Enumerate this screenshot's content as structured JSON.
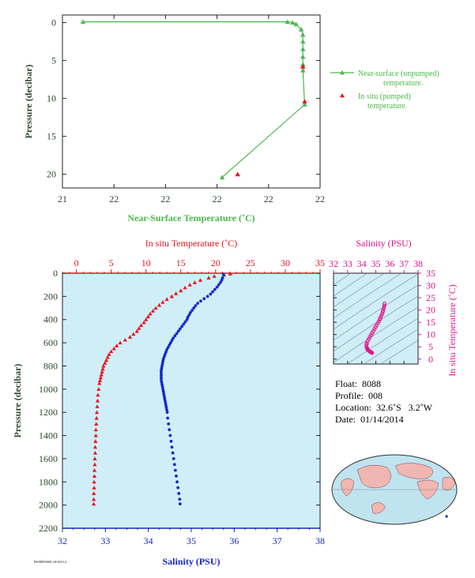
{
  "chart_data": [
    {
      "type": "line",
      "xlabel": "Near-Surface Temperature (˚C)",
      "ylabel": "Pressure (decibar)",
      "x_ticks": [
        "21",
        "22",
        "22",
        "22",
        "22",
        "22"
      ],
      "y_ticks": [
        "0",
        "5",
        "10",
        "15",
        "20"
      ],
      "xlim": [
        21.0,
        22.5
      ],
      "ylim": [
        21.8,
        -1.0
      ],
      "series": [
        {
          "name": "Near-surface (unpumped) temperature.",
          "color": "#4bb84b",
          "marker": "triangle",
          "points": [
            [
              21.12,
              -0.1
            ],
            [
              22.31,
              -0.1
            ],
            [
              22.34,
              0.0
            ],
            [
              22.36,
              0.2
            ],
            [
              22.39,
              0.9
            ],
            [
              22.4,
              1.6
            ],
            [
              22.4,
              2.5
            ],
            [
              22.4,
              3.5
            ],
            [
              22.4,
              4.5
            ],
            [
              22.4,
              5.5
            ],
            [
              22.4,
              6.3
            ],
            [
              22.41,
              10.8
            ],
            [
              21.93,
              20.4
            ]
          ]
        },
        {
          "name": "In situ (pumped) temperature.",
          "color": "#e8141e",
          "marker": "triangle",
          "points": [
            [
              22.4,
              5.8
            ],
            [
              22.41,
              10.4
            ],
            [
              22.02,
              20.0
            ]
          ]
        }
      ]
    },
    {
      "type": "scatter",
      "top_axis_label": "In situ Temperature (˚C)",
      "bottom_axis_label": "Salinity (PSU)",
      "ylabel": "Pressure (decibar)",
      "temperature_ticks": [
        "0",
        "5",
        "10",
        "15",
        "20",
        "25",
        "30",
        "35"
      ],
      "salinity_ticks": [
        "32",
        "33",
        "34",
        "35",
        "36",
        "37",
        "38"
      ],
      "pressure_ticks": [
        "0",
        "200",
        "400",
        "600",
        "800",
        "1000",
        "1200",
        "1400",
        "1600",
        "1800",
        "2000",
        "2200"
      ],
      "temperature_range": [
        -2,
        35
      ],
      "salinity_range": [
        32,
        38
      ],
      "pressure_range": [
        0,
        2200
      ],
      "temperature_profile": {
        "color": "#e8141e",
        "marker": "triangle",
        "points": [
          [
            22.1,
            5
          ],
          [
            21.2,
            15
          ],
          [
            19.8,
            25
          ],
          [
            19.0,
            40
          ],
          [
            17.8,
            60
          ],
          [
            17.0,
            80
          ],
          [
            16.3,
            100
          ],
          [
            15.6,
            125
          ],
          [
            15.0,
            150
          ],
          [
            14.3,
            175
          ],
          [
            13.7,
            200
          ],
          [
            13.0,
            225
          ],
          [
            12.4,
            250
          ],
          [
            11.9,
            275
          ],
          [
            11.4,
            300
          ],
          [
            11.0,
            325
          ],
          [
            10.6,
            350
          ],
          [
            10.3,
            375
          ],
          [
            10.0,
            400
          ],
          [
            9.7,
            425
          ],
          [
            9.3,
            450
          ],
          [
            9.0,
            475
          ],
          [
            8.7,
            500
          ],
          [
            8.2,
            525
          ],
          [
            7.7,
            550
          ],
          [
            7.0,
            575
          ],
          [
            6.3,
            600
          ],
          [
            5.8,
            625
          ],
          [
            5.4,
            650
          ],
          [
            5.0,
            675
          ],
          [
            4.7,
            700
          ],
          [
            4.5,
            725
          ],
          [
            4.3,
            750
          ],
          [
            4.1,
            775
          ],
          [
            3.9,
            800
          ],
          [
            3.8,
            825
          ],
          [
            3.7,
            850
          ],
          [
            3.6,
            875
          ],
          [
            3.5,
            900
          ],
          [
            3.4,
            925
          ],
          [
            3.3,
            950
          ],
          [
            3.2,
            1000
          ],
          [
            3.1,
            1050
          ],
          [
            3.05,
            1100
          ],
          [
            3.0,
            1150
          ],
          [
            2.95,
            1200
          ],
          [
            2.9,
            1250
          ],
          [
            2.85,
            1300
          ],
          [
            2.8,
            1350
          ],
          [
            2.8,
            1400
          ],
          [
            2.75,
            1450
          ],
          [
            2.7,
            1500
          ],
          [
            2.7,
            1550
          ],
          [
            2.65,
            1600
          ],
          [
            2.65,
            1650
          ],
          [
            2.6,
            1700
          ],
          [
            2.6,
            1750
          ],
          [
            2.55,
            1800
          ],
          [
            2.55,
            1850
          ],
          [
            2.5,
            1900
          ],
          [
            2.5,
            1950
          ],
          [
            2.5,
            1990
          ]
        ]
      },
      "salinity_profile": {
        "color": "#1428c8",
        "marker": "circle",
        "points": [
          [
            35.75,
            10
          ],
          [
            35.73,
            40
          ],
          [
            35.71,
            60
          ],
          [
            35.68,
            80
          ],
          [
            35.64,
            100
          ],
          [
            35.6,
            120
          ],
          [
            35.55,
            140
          ],
          [
            35.5,
            160
          ],
          [
            35.45,
            180
          ],
          [
            35.38,
            200
          ],
          [
            35.3,
            220
          ],
          [
            35.22,
            240
          ],
          [
            35.15,
            260
          ],
          [
            35.1,
            280
          ],
          [
            35.06,
            300
          ],
          [
            35.02,
            320
          ],
          [
            34.98,
            340
          ],
          [
            34.95,
            360
          ],
          [
            34.92,
            380
          ],
          [
            34.9,
            400
          ],
          [
            34.86,
            420
          ],
          [
            34.82,
            440
          ],
          [
            34.78,
            460
          ],
          [
            34.74,
            480
          ],
          [
            34.7,
            500
          ],
          [
            34.66,
            520
          ],
          [
            34.62,
            540
          ],
          [
            34.58,
            560
          ],
          [
            34.55,
            580
          ],
          [
            34.52,
            600
          ],
          [
            34.49,
            620
          ],
          [
            34.46,
            640
          ],
          [
            34.43,
            660
          ],
          [
            34.41,
            680
          ],
          [
            34.39,
            700
          ],
          [
            34.37,
            720
          ],
          [
            34.35,
            740
          ],
          [
            34.34,
            760
          ],
          [
            34.33,
            780
          ],
          [
            34.32,
            800
          ],
          [
            34.31,
            820
          ],
          [
            34.3,
            840
          ],
          [
            34.3,
            860
          ],
          [
            34.3,
            880
          ],
          [
            34.3,
            900
          ],
          [
            34.3,
            920
          ],
          [
            34.31,
            940
          ],
          [
            34.32,
            960
          ],
          [
            34.33,
            980
          ],
          [
            34.34,
            1000
          ],
          [
            34.35,
            1020
          ],
          [
            34.36,
            1040
          ],
          [
            34.37,
            1060
          ],
          [
            34.38,
            1080
          ],
          [
            34.39,
            1100
          ],
          [
            34.4,
            1120
          ],
          [
            34.41,
            1140
          ],
          [
            34.42,
            1160
          ],
          [
            34.43,
            1180
          ],
          [
            34.44,
            1200
          ],
          [
            34.45,
            1250
          ],
          [
            34.47,
            1300
          ],
          [
            34.49,
            1350
          ],
          [
            34.51,
            1400
          ],
          [
            34.53,
            1450
          ],
          [
            34.55,
            1500
          ],
          [
            34.57,
            1550
          ],
          [
            34.59,
            1600
          ],
          [
            34.61,
            1650
          ],
          [
            34.63,
            1700
          ],
          [
            34.65,
            1750
          ],
          [
            34.67,
            1800
          ],
          [
            34.69,
            1850
          ],
          [
            34.71,
            1900
          ],
          [
            34.73,
            1950
          ],
          [
            34.74,
            1990
          ]
        ]
      }
    },
    {
      "type": "scatter",
      "xlabel": "Salinity (PSU)",
      "ylabel": "In situ Temperature (˚C)",
      "x_ticks": [
        "32",
        "33",
        "34",
        "35",
        "36",
        "37",
        "38"
      ],
      "y_ticks": [
        "0",
        "5",
        "10",
        "15",
        "20",
        "25",
        "30",
        "35"
      ],
      "xlim": [
        32,
        38
      ],
      "ylim": [
        -2,
        35
      ],
      "color": "#e0148c",
      "points": [
        [
          34.73,
          2.5
        ],
        [
          34.7,
          2.7
        ],
        [
          34.67,
          2.8
        ],
        [
          34.64,
          2.9
        ],
        [
          34.6,
          3.0
        ],
        [
          34.56,
          3.2
        ],
        [
          34.5,
          3.4
        ],
        [
          34.46,
          3.6
        ],
        [
          34.42,
          3.9
        ],
        [
          34.38,
          4.3
        ],
        [
          34.35,
          4.7
        ],
        [
          34.34,
          5.2
        ],
        [
          34.34,
          5.8
        ],
        [
          34.36,
          6.5
        ],
        [
          34.42,
          7.3
        ],
        [
          34.5,
          8.2
        ],
        [
          34.58,
          9.0
        ],
        [
          34.66,
          9.8
        ],
        [
          34.74,
          10.6
        ],
        [
          34.82,
          11.4
        ],
        [
          34.9,
          12.2
        ],
        [
          34.98,
          13.0
        ],
        [
          35.06,
          13.8
        ],
        [
          35.14,
          14.6
        ],
        [
          35.22,
          15.4
        ],
        [
          35.28,
          16.2
        ],
        [
          35.34,
          17.0
        ],
        [
          35.4,
          17.8
        ],
        [
          35.46,
          18.6
        ],
        [
          35.5,
          19.4
        ],
        [
          35.54,
          20.2
        ],
        [
          35.58,
          21.0
        ],
        [
          35.6,
          21.8
        ],
        [
          35.62,
          22.6
        ]
      ]
    }
  ],
  "legend": {
    "near_surface": "Near-surface (unpumped) temperature.",
    "in_situ": "In situ (pumped) temperature."
  },
  "float_info": {
    "float": "Float:  8088",
    "profile": "Profile:  008",
    "location": "Location:  32.6˚S   3.2˚W",
    "date": "Date:  01/14/2014"
  },
  "footer": "P8088P0008.20140114",
  "colors": {
    "green": "#4bb84b",
    "red": "#e8141e",
    "blue": "#1428c8",
    "magenta": "#e0148c",
    "axis_dark": "#2a4a2a",
    "panel_fill": "#cfeef8"
  }
}
